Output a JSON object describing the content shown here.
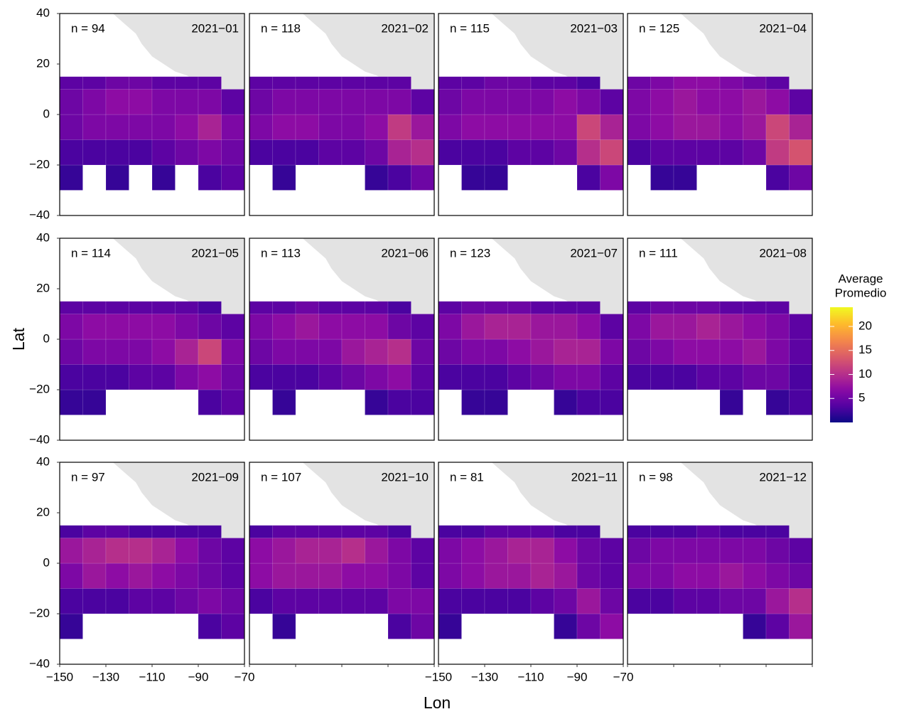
{
  "chart_data": {
    "type": "heatmap",
    "xlabel": "Lon",
    "ylabel": "Lat",
    "xlim": [
      -150,
      -70
    ],
    "ylim": [
      -40,
      40
    ],
    "xticks": [
      {
        "value": -150,
        "label": "−150"
      },
      {
        "value": -130,
        "label": "−130"
      },
      {
        "value": -110,
        "label": "−110"
      },
      {
        "value": -90,
        "label": "−90"
      },
      {
        "value": -70,
        "label": "−70"
      }
    ],
    "yticks": [
      {
        "value": -40,
        "label": "−40"
      },
      {
        "value": -20,
        "label": "−20"
      },
      0,
      20,
      40
    ],
    "xbins": [
      -150,
      -140,
      -130,
      -120,
      -110,
      -100,
      -90,
      -80,
      -70
    ],
    "ybins": [
      -30,
      -20,
      -10,
      0,
      10,
      15
    ],
    "colorbar": {
      "title": [
        "Average",
        "Promedio"
      ],
      "lim": [
        0,
        24
      ],
      "ticks": [
        5,
        10,
        15,
        20
      ],
      "colormap": "plasma"
    },
    "land_color": "#e3e3e3",
    "panels": [
      {
        "title": "2021−01",
        "annotation": "n = 94",
        "values": [
          [
            2,
            null,
            2,
            null,
            2,
            null,
            3,
            4
          ],
          [
            3,
            3,
            3,
            3,
            4,
            5,
            6,
            5
          ],
          [
            5,
            6,
            6,
            6,
            6,
            7,
            9,
            6
          ],
          [
            5,
            6,
            7,
            7,
            6,
            6,
            6,
            4
          ],
          [
            4,
            4,
            5,
            5,
            4,
            4,
            4,
            null
          ]
        ]
      },
      {
        "title": "2021−02",
        "annotation": "n = 118",
        "values": [
          [
            null,
            2,
            null,
            null,
            null,
            2,
            3,
            5
          ],
          [
            3,
            3,
            3,
            4,
            4,
            5,
            9,
            10
          ],
          [
            6,
            7,
            7,
            6,
            6,
            7,
            11,
            8
          ],
          [
            5,
            6,
            6,
            6,
            6,
            6,
            6,
            4
          ],
          [
            4,
            4,
            4,
            4,
            4,
            4,
            4,
            null
          ]
        ]
      },
      {
        "title": "2021−03",
        "annotation": "n = 115",
        "values": [
          [
            null,
            2,
            2,
            null,
            null,
            null,
            3,
            6
          ],
          [
            3,
            3,
            3,
            4,
            4,
            5,
            10,
            12
          ],
          [
            6,
            7,
            7,
            7,
            7,
            7,
            12,
            9
          ],
          [
            5,
            6,
            6,
            6,
            6,
            7,
            6,
            4
          ],
          [
            4,
            4,
            5,
            5,
            4,
            4,
            3,
            null
          ]
        ]
      },
      {
        "title": "2021−04",
        "annotation": "n = 125",
        "values": [
          [
            null,
            2,
            2,
            null,
            null,
            null,
            3,
            5
          ],
          [
            3,
            4,
            4,
            4,
            4,
            5,
            11,
            13
          ],
          [
            6,
            7,
            8,
            8,
            7,
            8,
            12,
            9
          ],
          [
            6,
            7,
            8,
            7,
            7,
            8,
            7,
            4
          ],
          [
            5,
            6,
            7,
            7,
            6,
            5,
            4,
            null
          ]
        ]
      },
      {
        "title": "2021−05",
        "annotation": "n = 114",
        "values": [
          [
            2,
            2,
            null,
            null,
            null,
            null,
            3,
            4
          ],
          [
            3,
            3,
            3,
            4,
            4,
            6,
            7,
            5
          ],
          [
            5,
            6,
            6,
            6,
            7,
            9,
            12,
            6
          ],
          [
            6,
            7,
            7,
            7,
            7,
            6,
            5,
            4
          ],
          [
            4,
            4,
            4,
            4,
            4,
            4,
            3,
            null
          ]
        ]
      },
      {
        "title": "2021−06",
        "annotation": "n = 113",
        "values": [
          [
            null,
            2,
            null,
            null,
            null,
            2,
            3,
            3
          ],
          [
            3,
            3,
            3,
            4,
            5,
            6,
            7,
            4
          ],
          [
            5,
            6,
            6,
            6,
            8,
            9,
            10,
            5
          ],
          [
            6,
            7,
            8,
            7,
            7,
            7,
            5,
            4
          ],
          [
            4,
            4,
            5,
            4,
            4,
            4,
            3,
            null
          ]
        ]
      },
      {
        "title": "2021−07",
        "annotation": "n = 123",
        "values": [
          [
            null,
            2,
            2,
            null,
            null,
            2,
            3,
            3
          ],
          [
            3,
            3,
            3,
            4,
            5,
            6,
            6,
            4
          ],
          [
            5,
            6,
            6,
            7,
            8,
            9,
            9,
            6
          ],
          [
            6,
            8,
            9,
            9,
            8,
            8,
            7,
            4
          ],
          [
            4,
            5,
            5,
            5,
            4,
            4,
            4,
            null
          ]
        ]
      },
      {
        "title": "2021−08",
        "annotation": "n = 111",
        "values": [
          [
            null,
            null,
            null,
            null,
            2,
            null,
            2,
            3
          ],
          [
            3,
            3,
            3,
            4,
            4,
            5,
            5,
            3
          ],
          [
            5,
            6,
            7,
            7,
            7,
            8,
            6,
            4
          ],
          [
            6,
            8,
            8,
            9,
            8,
            7,
            6,
            4
          ],
          [
            4,
            5,
            5,
            5,
            4,
            4,
            4,
            null
          ]
        ]
      },
      {
        "title": "2021−09",
        "annotation": "n = 97",
        "values": [
          [
            2,
            null,
            null,
            null,
            null,
            null,
            3,
            4
          ],
          [
            3,
            3,
            3,
            4,
            4,
            5,
            6,
            5
          ],
          [
            6,
            8,
            7,
            8,
            7,
            6,
            5,
            4
          ],
          [
            8,
            9,
            10,
            10,
            9,
            7,
            5,
            4
          ],
          [
            3,
            4,
            4,
            3,
            3,
            3,
            3,
            null
          ]
        ]
      },
      {
        "title": "2021−10",
        "annotation": "n = 107",
        "values": [
          [
            null,
            2,
            null,
            null,
            null,
            null,
            3,
            5
          ],
          [
            3,
            4,
            4,
            4,
            4,
            4,
            6,
            6
          ],
          [
            7,
            8,
            8,
            8,
            7,
            7,
            6,
            4
          ],
          [
            7,
            8,
            9,
            9,
            10,
            8,
            6,
            4
          ],
          [
            3,
            4,
            4,
            4,
            4,
            4,
            3,
            null
          ]
        ]
      },
      {
        "title": "2021−11",
        "annotation": "n = 81",
        "values": [
          [
            2,
            null,
            null,
            null,
            null,
            2,
            5,
            7
          ],
          [
            3,
            3,
            3,
            3,
            4,
            5,
            8,
            5
          ],
          [
            6,
            7,
            8,
            8,
            9,
            8,
            5,
            4
          ],
          [
            6,
            7,
            8,
            9,
            9,
            7,
            5,
            4
          ],
          [
            3,
            3,
            4,
            4,
            4,
            3,
            3,
            null
          ]
        ]
      },
      {
        "title": "2021−12",
        "annotation": "n = 98",
        "values": [
          [
            null,
            null,
            null,
            null,
            null,
            2,
            4,
            8
          ],
          [
            3,
            3,
            4,
            4,
            5,
            5,
            8,
            10
          ],
          [
            6,
            6,
            7,
            7,
            8,
            7,
            6,
            5
          ],
          [
            5,
            6,
            6,
            6,
            6,
            6,
            5,
            4
          ],
          [
            3,
            3,
            3,
            4,
            3,
            3,
            3,
            null
          ]
        ]
      }
    ]
  }
}
